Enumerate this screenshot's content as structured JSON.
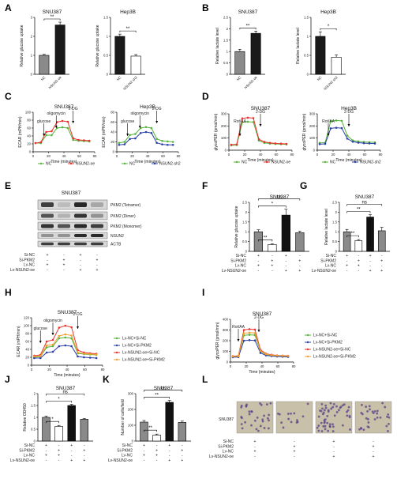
{
  "panels": {
    "A": "A",
    "B": "B",
    "C": "C",
    "D": "D",
    "E": "E",
    "F": "F",
    "G": "G",
    "H": "H",
    "I": "I",
    "J": "J",
    "K": "K",
    "L": "L"
  },
  "colors": {
    "black": "#111111",
    "white": "#ffffff",
    "gray": "#8a8a8a",
    "green": "#55b33a",
    "red": "#e8332d",
    "blue": "#2a3fa5",
    "orange": "#f0a030"
  },
  "chart_data": [
    {
      "id": "A1",
      "type": "bar",
      "title": "SNU387",
      "ylabel": "Relative glucose uptake",
      "ylim": [
        0,
        3
      ],
      "yticks": [
        0,
        1,
        2,
        3
      ],
      "categories": [
        "NC",
        "NSUN2-oe"
      ],
      "values": [
        1.0,
        2.6
      ],
      "errors": [
        0.05,
        0.15
      ],
      "sig": [
        "**"
      ]
    },
    {
      "id": "A2",
      "type": "bar",
      "title": "Hep3B",
      "ylabel": "Relative glucose uptake",
      "ylim": [
        0,
        1.5
      ],
      "yticks": [
        0.0,
        0.5,
        1.0,
        1.5
      ],
      "categories": [
        "NC",
        "NSUN2-sh2"
      ],
      "values": [
        1.0,
        0.48
      ],
      "errors": [
        0.06,
        0.04
      ],
      "sig": [
        "**"
      ]
    },
    {
      "id": "B1",
      "type": "bar",
      "title": "SNU387",
      "ylabel": "Relative lactate level",
      "ylim": [
        0,
        2.5
      ],
      "yticks": [
        0.0,
        0.5,
        1.0,
        1.5,
        2.0,
        2.5
      ],
      "categories": [
        "NC",
        "NSUN2-oe"
      ],
      "values": [
        1.0,
        1.8
      ],
      "errors": [
        0.1,
        0.1
      ],
      "sig": [
        "**"
      ]
    },
    {
      "id": "B2",
      "type": "bar",
      "title": "Hep3B",
      "ylabel": "Relative lactate level",
      "ylim": [
        0,
        1.5
      ],
      "yticks": [
        0.0,
        0.5,
        1.0,
        1.5
      ],
      "categories": [
        "NC",
        "NSUN2-sh2"
      ],
      "values": [
        1.0,
        0.45
      ],
      "errors": [
        0.12,
        0.06
      ],
      "sig": [
        "*"
      ]
    },
    {
      "id": "C1",
      "type": "line",
      "title": "SNU387",
      "ylabel": "ECAR (mPH/min)",
      "xlabel": "Time (minutes)",
      "ylim": [
        0,
        100
      ],
      "yticks": [
        0,
        20,
        40,
        60,
        80,
        100
      ],
      "xlim": [
        0,
        80
      ],
      "xticks": [
        0,
        20,
        40,
        60,
        80
      ],
      "annotations": [
        "glucose",
        "oligomycin",
        "2-DG"
      ],
      "series": [
        {
          "name": "NC",
          "color": "green",
          "x": [
            3,
            10,
            17,
            24,
            31,
            38,
            45,
            52,
            59,
            66,
            73
          ],
          "y": [
            22,
            22,
            42,
            42,
            60,
            62,
            60,
            30,
            28,
            27,
            26
          ]
        },
        {
          "name": "NSUN2-oe",
          "color": "red",
          "x": [
            3,
            10,
            17,
            24,
            31,
            38,
            45,
            52,
            59,
            66,
            73
          ],
          "y": [
            22,
            24,
            50,
            52,
            75,
            78,
            76,
            34,
            30,
            29,
            28
          ]
        }
      ],
      "legend": [
        "NC",
        "NSUN2-oe"
      ]
    },
    {
      "id": "C2",
      "type": "line",
      "title": "Hep3B",
      "ylabel": "ECAR (mPH/min)",
      "xlabel": "Time (minutes)",
      "ylim": [
        0,
        80
      ],
      "yticks": [
        0,
        20,
        40,
        60,
        80
      ],
      "xlim": [
        0,
        80
      ],
      "xticks": [
        0,
        20,
        40,
        60,
        80
      ],
      "annotations": [
        "glucose",
        "oligomycin",
        "2-DG"
      ],
      "series": [
        {
          "name": "NC",
          "color": "green",
          "x": [
            3,
            10,
            17,
            24,
            31,
            38,
            45,
            52,
            59,
            66,
            73
          ],
          "y": [
            18,
            20,
            34,
            36,
            48,
            50,
            48,
            26,
            22,
            21,
            20
          ]
        },
        {
          "name": "NSUN2-sh2",
          "color": "blue",
          "x": [
            3,
            10,
            17,
            24,
            31,
            38,
            45,
            52,
            59,
            66,
            73
          ],
          "y": [
            14,
            15,
            26,
            27,
            38,
            40,
            38,
            18,
            15,
            14,
            14
          ]
        }
      ],
      "legend": [
        "NC",
        "NSUN2-sh2"
      ]
    },
    {
      "id": "D1",
      "type": "line",
      "title": "SNU387",
      "ylabel": "glycoPER (pmol/min)",
      "xlabel": "Time (minutes)",
      "ylim": [
        0,
        300
      ],
      "yticks": [
        0,
        100,
        200,
        300
      ],
      "xlim": [
        0,
        80
      ],
      "xticks": [
        0,
        20,
        40,
        60,
        80
      ],
      "annotations": [
        "Rot/AA",
        "2-DG"
      ],
      "series": [
        {
          "name": "NC",
          "color": "green",
          "x": [
            3,
            10,
            17,
            24,
            31,
            38,
            45,
            52,
            59,
            66,
            73
          ],
          "y": [
            40,
            42,
            230,
            235,
            232,
            80,
            60,
            55,
            52,
            50,
            48
          ]
        },
        {
          "name": "NSUN2-oe",
          "color": "red",
          "x": [
            3,
            10,
            17,
            24,
            31,
            38,
            45,
            52,
            59,
            66,
            73
          ],
          "y": [
            45,
            48,
            262,
            268,
            265,
            90,
            68,
            60,
            56,
            54,
            52
          ]
        }
      ],
      "legend": [
        "NC",
        "NSUN2-oe"
      ]
    },
    {
      "id": "D2",
      "type": "line",
      "title": "Hep3B",
      "ylabel": "glycoPER (pmol/min)",
      "xlabel": "Time (minutes)",
      "ylim": [
        0,
        300
      ],
      "yticks": [
        0,
        100,
        200,
        300
      ],
      "xlim": [
        0,
        80
      ],
      "xticks": [
        0,
        20,
        40,
        60,
        80
      ],
      "annotations": [
        "Rot/AA",
        "2-DG"
      ],
      "series": [
        {
          "name": "NC",
          "color": "green",
          "x": [
            3,
            10,
            17,
            24,
            31,
            38,
            45,
            52,
            59,
            66,
            73
          ],
          "y": [
            60,
            62,
            240,
            245,
            242,
            120,
            80,
            72,
            68,
            66,
            64
          ]
        },
        {
          "name": "NSUN2-sh2",
          "color": "blue",
          "x": [
            3,
            10,
            17,
            24,
            31,
            38,
            45,
            52,
            59,
            66,
            73
          ],
          "y": [
            50,
            52,
            180,
            185,
            182,
            95,
            70,
            62,
            58,
            56,
            55
          ]
        }
      ],
      "legend": [
        "NC",
        "NSUN2-sh2"
      ]
    },
    {
      "id": "F",
      "type": "bar",
      "title": "SNU387",
      "ylabel": "Relative glucose uptake",
      "ylim": [
        0,
        2.5
      ],
      "yticks": [
        0.0,
        0.5,
        1.0,
        1.5,
        2.0,
        2.5
      ],
      "categories": [
        "1",
        "2",
        "3",
        "4"
      ],
      "values": [
        1.0,
        0.35,
        1.85,
        0.95
      ],
      "errors": [
        0.1,
        0.04,
        0.3,
        0.08
      ],
      "sig": [
        "**",
        "*",
        "ns"
      ]
    },
    {
      "id": "G",
      "type": "bar",
      "title": "SNU387",
      "ylabel": "Relative lactate level",
      "ylim": [
        0,
        2.5
      ],
      "yticks": [
        0.0,
        0.5,
        1.0,
        1.5,
        2.0,
        2.5
      ],
      "categories": [
        "1",
        "2",
        "3",
        "4"
      ],
      "values": [
        1.0,
        0.55,
        1.75,
        1.05
      ],
      "errors": [
        0.12,
        0.05,
        0.12,
        0.18
      ],
      "sig": [
        "**",
        "**",
        "ns"
      ]
    },
    {
      "id": "H",
      "type": "line",
      "title": "SNU387",
      "ylabel": "ECAR (mPH/min)",
      "xlabel": "Time (minutes)",
      "ylim": [
        0,
        120
      ],
      "yticks": [
        0,
        20,
        40,
        60,
        80,
        100,
        120
      ],
      "xlim": [
        0,
        80
      ],
      "xticks": [
        0,
        20,
        40,
        60,
        80
      ],
      "annotations": [
        "glucose",
        "oligomycin",
        "2-DG"
      ],
      "series": [
        {
          "name": "Lv-NC+Si-NC",
          "color": "green",
          "x": [
            3,
            10,
            17,
            24,
            31,
            38,
            45,
            52,
            59,
            66,
            73
          ],
          "y": [
            20,
            22,
            45,
            48,
            68,
            70,
            68,
            30,
            28,
            27,
            26
          ]
        },
        {
          "name": "Lv-NC+Si-PKM2",
          "color": "blue",
          "x": [
            3,
            10,
            17,
            24,
            31,
            38,
            45,
            52,
            59,
            66,
            73
          ],
          "y": [
            18,
            18,
            32,
            34,
            48,
            50,
            48,
            22,
            20,
            19,
            18
          ]
        },
        {
          "name": "Lv-NSUN2-oe+Si-NC",
          "color": "red",
          "x": [
            3,
            10,
            17,
            24,
            31,
            38,
            45,
            52,
            59,
            66,
            73
          ],
          "y": [
            24,
            26,
            60,
            64,
            95,
            100,
            96,
            38,
            32,
            30,
            29
          ]
        },
        {
          "name": "Lv-NSUN2-oe+Si-PKM2",
          "color": "orange",
          "x": [
            3,
            10,
            17,
            24,
            31,
            38,
            45,
            52,
            59,
            66,
            73
          ],
          "y": [
            22,
            23,
            50,
            52,
            74,
            78,
            75,
            32,
            29,
            28,
            27
          ]
        }
      ],
      "legend": [
        "Lv-NC+Si-NC",
        "Lv-NC+Si-PKM2",
        "Lv-NSUN2-oe+Si-NC",
        "Lv-NSUN2-oe+Si-PKM2"
      ]
    },
    {
      "id": "I",
      "type": "line",
      "title": "SNU387",
      "ylabel": "glycoPER (pmol/min)",
      "xlabel": "Time (minutes)",
      "ylim": [
        0,
        400
      ],
      "yticks": [
        0,
        100,
        200,
        300,
        400
      ],
      "xlim": [
        0,
        80
      ],
      "xticks": [
        0,
        20,
        40,
        60,
        80
      ],
      "annotations": [
        "Rot/AA",
        "2-DG"
      ],
      "series": [
        {
          "name": "Lv-NC+Si-NC",
          "color": "green",
          "x": [
            3,
            10,
            17,
            24,
            31,
            38,
            45,
            52,
            59,
            66,
            73
          ],
          "y": [
            50,
            52,
            250,
            255,
            252,
            100,
            70,
            62,
            58,
            56,
            54
          ]
        },
        {
          "name": "Lv-NC+Si-PKM2",
          "color": "blue",
          "x": [
            3,
            10,
            17,
            24,
            31,
            38,
            45,
            52,
            59,
            66,
            73
          ],
          "y": [
            45,
            46,
            200,
            205,
            202,
            85,
            62,
            56,
            52,
            50,
            48
          ]
        },
        {
          "name": "Lv-NSUN2-oe+Si-NC",
          "color": "red",
          "x": [
            3,
            10,
            17,
            24,
            31,
            38,
            45,
            52,
            59,
            66,
            73
          ],
          "y": [
            55,
            58,
            300,
            308,
            304,
            115,
            78,
            68,
            62,
            60,
            58
          ]
        },
        {
          "name": "Lv-NSUN2-oe+Si-PKM2",
          "color": "orange",
          "x": [
            3,
            10,
            17,
            24,
            31,
            38,
            45,
            52,
            59,
            66,
            73
          ],
          "y": [
            52,
            54,
            270,
            275,
            272,
            105,
            74,
            64,
            60,
            58,
            56
          ]
        }
      ],
      "legend": [
        "Lv-NC+Si-NC",
        "Lv-NC+Si-PKM2",
        "Lv-NSUN2-oe+Si-NC",
        "Lv-NSUN2-oe+Si-PKM2"
      ]
    },
    {
      "id": "J",
      "type": "bar",
      "title": "SNU387",
      "ylabel": "Relative OD450",
      "ylim": [
        0,
        2.0
      ],
      "yticks": [
        0.0,
        0.5,
        1.0,
        1.5,
        2.0
      ],
      "categories": [
        "1",
        "2",
        "3",
        "4"
      ],
      "values": [
        1.0,
        0.62,
        1.5,
        0.92
      ],
      "errors": [
        0.05,
        0.04,
        0.05,
        0.03
      ],
      "sig": [
        "*",
        "*",
        "ns"
      ]
    },
    {
      "id": "K",
      "type": "bar",
      "title": "SNU387",
      "ylabel": "Number of cells/field",
      "ylim": [
        0,
        300
      ],
      "yticks": [
        0,
        100,
        200,
        300
      ],
      "categories": [
        "1",
        "2",
        "3",
        "4"
      ],
      "values": [
        120,
        38,
        245,
        118
      ],
      "errors": [
        10,
        6,
        12,
        8
      ],
      "sig": [
        "**",
        "**",
        "ns"
      ]
    }
  ],
  "treat": {
    "F": {
      "rows": [
        "Si-NC",
        "Si-PKM2",
        "Lv-NC",
        "Lv-NSUN2-oe"
      ],
      "cells": [
        [
          "+",
          "-",
          "+",
          "-"
        ],
        [
          "-",
          "+",
          "-",
          "+"
        ],
        [
          "+",
          "+",
          "-",
          "-"
        ],
        [
          "-",
          "-",
          "+",
          "+"
        ]
      ]
    },
    "G": {
      "rows": [
        "Si-NC",
        "Si-PKM2",
        "Lv-NC",
        "Lv-NSUN2-oe"
      ],
      "cells": [
        [
          "+",
          "-",
          "+",
          "-"
        ],
        [
          "-",
          "+",
          "-",
          "+"
        ],
        [
          "+",
          "+",
          "-",
          "-"
        ],
        [
          "-",
          "-",
          "+",
          "+"
        ]
      ]
    },
    "J": {
      "rows": [
        "Si-NC",
        "Si-PKM2",
        "Lv-NC",
        "Lv-NSUN2-oe"
      ],
      "cells": [
        [
          "+",
          "-",
          "+",
          "-"
        ],
        [
          "-",
          "+",
          "-",
          "+"
        ],
        [
          "+",
          "+",
          "-",
          "-"
        ],
        [
          "-",
          "-",
          "+",
          "+"
        ]
      ]
    },
    "K": {
      "rows": [
        "Si-NC",
        "Si-PKM2",
        "Lv-NC",
        "Lv-NSUN2-oe"
      ],
      "cells": [
        [
          "+",
          "-",
          "+",
          "-"
        ],
        [
          "-",
          "+",
          "-",
          "+"
        ],
        [
          "+",
          "+",
          "-",
          "-"
        ],
        [
          "-",
          "-",
          "+",
          "+"
        ]
      ]
    },
    "E": {
      "rows": [
        "Si-NC",
        "Si-PKM2",
        "Lv-NC",
        "Lv-NSUN2-oe"
      ],
      "cells": [
        [
          "+",
          "-",
          "+",
          "-"
        ],
        [
          "-",
          "+",
          "-",
          "+"
        ],
        [
          "+",
          "+",
          "-",
          "-"
        ],
        [
          "-",
          "-",
          "+",
          "+"
        ]
      ]
    },
    "L": {
      "rows": [
        "Si-NC",
        "Si-PKM2",
        "Lv-NC",
        "Lv-NSUN2-oe"
      ],
      "cells": [
        [
          "+",
          "-",
          "+",
          "-"
        ],
        [
          "-",
          "+",
          "-",
          "+"
        ],
        [
          "+",
          "+",
          "-",
          "-"
        ],
        [
          "-",
          "-",
          "+",
          "+"
        ]
      ]
    }
  },
  "blot": {
    "title": "SNU387",
    "labels": [
      "PKM2 (Tetramer)",
      "PKM2 (Dimer)",
      "PKM2 (Monomer)",
      "NSUN2",
      "ACTB"
    ]
  },
  "micro": {
    "title": "SNU387",
    "label": "SNU387"
  }
}
